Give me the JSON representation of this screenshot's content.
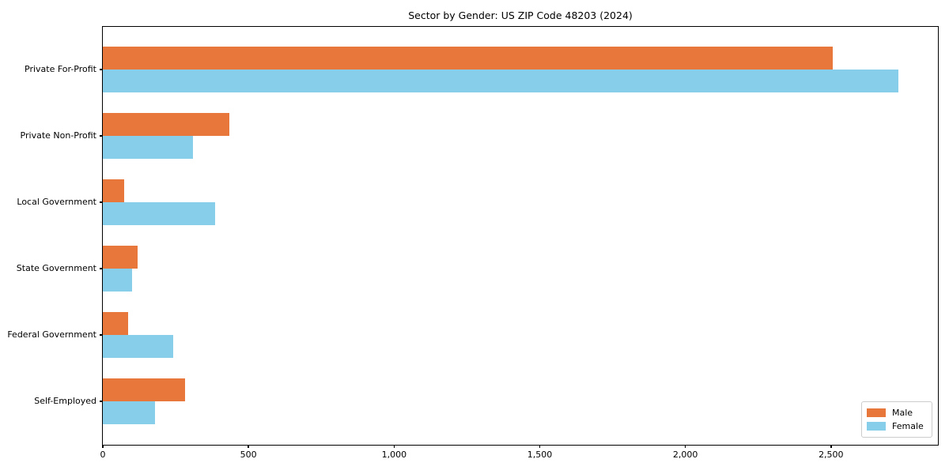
{
  "chart_data": {
    "type": "bar",
    "orientation": "horizontal",
    "title": "Sector by Gender: US ZIP Code 48203 (2024)",
    "categories": [
      "Private For-Profit",
      "Private Non-Profit",
      "Local Government",
      "State Government",
      "Federal Government",
      "Self-Employed"
    ],
    "series": [
      {
        "name": "Male",
        "color": "#e8773b",
        "values": [
          2507,
          434,
          72,
          119,
          86,
          282
        ]
      },
      {
        "name": "Female",
        "color": "#87ceeb",
        "values": [
          2732,
          309,
          386,
          99,
          241,
          180
        ]
      }
    ],
    "xlabel": "",
    "ylabel": "",
    "xlim": [
      0,
      2867
    ],
    "x_ticks": [
      0,
      500,
      1000,
      1500,
      2000,
      2500
    ],
    "x_tick_labels": [
      "0",
      "500",
      "1,000",
      "1,500",
      "2,000",
      "2,500"
    ],
    "legend": {
      "position": "lower right",
      "entries": [
        "Male",
        "Female"
      ]
    },
    "grid": false,
    "colors": {
      "spine": "#000000",
      "legend_border": "#cccccc",
      "background": "#ffffff"
    }
  }
}
